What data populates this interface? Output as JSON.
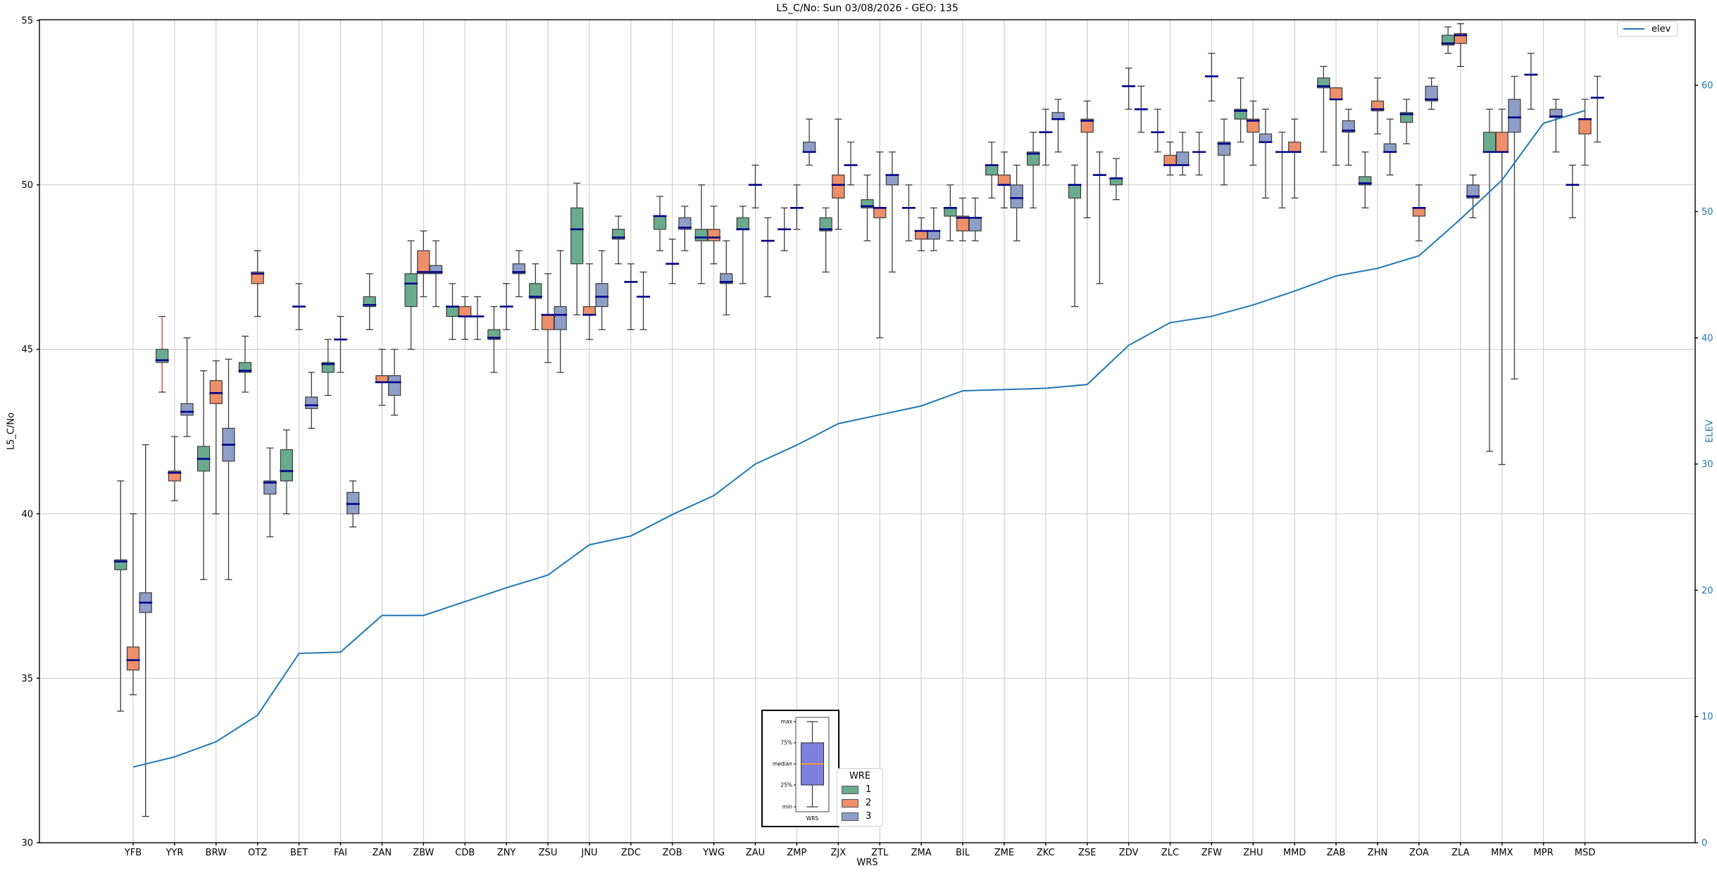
{
  "title": "L5_C/No: Sun 03/08/2026 - GEO: 135",
  "axes": {
    "x_label": "WRS",
    "y_left_label": "L5_C/No",
    "y_right_label": "ELEV",
    "y_left_ticks": [
      30,
      35,
      40,
      45,
      50,
      55
    ],
    "y_right_ticks": [
      0,
      10,
      20,
      30,
      40,
      50,
      60
    ],
    "y_left_range": [
      30,
      55
    ],
    "y_right_range": [
      0,
      65.2
    ],
    "grid": true
  },
  "legend_elev": {
    "label": "elev"
  },
  "legend_wre": {
    "title": "WRE",
    "entries": [
      {
        "label": "1",
        "color": "#6aab8e"
      },
      {
        "label": "2",
        "color": "#ec8f6a"
      },
      {
        "label": "3",
        "color": "#8e9ec6"
      }
    ]
  },
  "inset": {
    "labels": [
      "max",
      "75%",
      "median",
      "25%",
      "min"
    ],
    "x_label": "WRS",
    "box_color": "#7c7fdb",
    "median_color": "#ff9a2a"
  },
  "colors": {
    "wre1": "#6aab8e",
    "wre2": "#ec8f6a",
    "wre3": "#8e9ec6",
    "median": "#00008b",
    "box_edge": "#3c3c3c",
    "whisker": "#3c3c3c",
    "whisker_flagged": "#e03131",
    "elev_line": "#1f77b4",
    "grid": "#c8c8c8",
    "spine": "#000000",
    "right_axis_text": "#1f77b4"
  },
  "chart_data": {
    "type": "boxplot+line",
    "title": "L5_C/No: Sun 03/08/2026 - GEO: 135",
    "xlabel": "WRS",
    "ylabel_left": "L5_C/No",
    "ylabel_right": "ELEV",
    "ylim_left": [
      30,
      55
    ],
    "ylim_right": [
      0,
      65.2
    ],
    "legend_position": "lower-center and upper-right",
    "categories": [
      "YFB",
      "YYR",
      "BRW",
      "OTZ",
      "BET",
      "FAI",
      "ZAN",
      "ZBW",
      "CDB",
      "ZNY",
      "ZSU",
      "JNU",
      "ZDC",
      "ZOB",
      "YWG",
      "ZAU",
      "ZMP",
      "ZJX",
      "ZTL",
      "ZMA",
      "BIL",
      "ZME",
      "ZKC",
      "ZSE",
      "ZDV",
      "ZLC",
      "ZFW",
      "ZHU",
      "MMD",
      "ZAB",
      "ZHN",
      "ZOA",
      "ZLA",
      "MMX",
      "MPR",
      "MSD"
    ],
    "series_line": {
      "name": "elev",
      "values": [
        6.0,
        6.8,
        8.0,
        10.1,
        15.0,
        15.1,
        18.0,
        18.0,
        19.1,
        20.2,
        21.2,
        23.6,
        24.3,
        26.0,
        27.5,
        30.0,
        31.5,
        33.2,
        33.9,
        34.6,
        35.8,
        35.9,
        36.0,
        36.3,
        39.4,
        41.2,
        41.7,
        42.6,
        43.7,
        44.9,
        45.5,
        46.5,
        49.4,
        52.5,
        57.0,
        58.0
      ]
    },
    "boxes_format": [
      "wre",
      "whisker_low",
      "q1",
      "median",
      "q3",
      "whisker_high",
      "flag(optional)"
    ],
    "boxes": {
      "YFB": [
        [
          1,
          34.0,
          38.3,
          38.55,
          38.6,
          41.0
        ],
        [
          2,
          34.5,
          35.25,
          35.55,
          35.95,
          40.0
        ],
        [
          3,
          30.8,
          37.0,
          37.3,
          37.6,
          42.1
        ]
      ],
      "YYR": [
        [
          1,
          43.7,
          44.6,
          44.67,
          45.0,
          46.0,
          "red"
        ],
        [
          2,
          40.4,
          41.0,
          41.25,
          41.3,
          42.35
        ],
        [
          3,
          42.35,
          43.0,
          43.1,
          43.35,
          45.35
        ]
      ],
      "BRW": [
        [
          1,
          38.0,
          41.3,
          41.67,
          42.05,
          44.35
        ],
        [
          2,
          40.0,
          43.35,
          43.67,
          44.05,
          44.65
        ],
        [
          3,
          38.0,
          41.6,
          42.1,
          42.6,
          44.7
        ]
      ],
      "OTZ": [
        [
          1,
          43.7,
          44.3,
          44.35,
          44.6,
          45.4
        ],
        [
          2,
          46.0,
          47.0,
          47.3,
          47.35,
          48.0
        ],
        [
          3,
          39.3,
          40.6,
          40.95,
          41.0,
          42.0
        ]
      ],
      "BET": [
        [
          1,
          40.0,
          41.0,
          41.3,
          41.95,
          42.55
        ],
        [
          2,
          45.6,
          46.3,
          46.3,
          46.3,
          47.0
        ],
        [
          3,
          42.6,
          43.2,
          43.3,
          43.55,
          44.3
        ]
      ],
      "FAI": [
        [
          1,
          43.6,
          44.3,
          44.55,
          44.6,
          45.3
        ],
        [
          2,
          44.3,
          45.3,
          45.3,
          45.3,
          46.0
        ],
        [
          3,
          39.6,
          40.0,
          40.3,
          40.65,
          41.0
        ]
      ],
      "ZAN": [
        [
          1,
          45.6,
          46.3,
          46.35,
          46.6,
          47.3
        ],
        [
          2,
          43.3,
          44.0,
          44.0,
          44.2,
          45.0
        ],
        [
          3,
          43.0,
          43.6,
          44.0,
          44.2,
          45.0
        ]
      ],
      "ZBW": [
        [
          1,
          45.0,
          46.3,
          47.0,
          47.3,
          48.3
        ],
        [
          2,
          46.6,
          47.3,
          47.35,
          48.0,
          48.6
        ],
        [
          3,
          46.3,
          47.3,
          47.35,
          47.55,
          48.3
        ]
      ],
      "CDB": [
        [
          1,
          45.3,
          46.0,
          46.3,
          46.3,
          47.0
        ],
        [
          2,
          45.3,
          46.0,
          46.0,
          46.3,
          46.6
        ],
        [
          3,
          45.3,
          46.0,
          46.0,
          46.0,
          46.6
        ]
      ],
      "ZNY": [
        [
          1,
          44.3,
          45.3,
          45.35,
          45.6,
          46.3
        ],
        [
          2,
          45.6,
          46.3,
          46.3,
          46.3,
          47.0
        ],
        [
          3,
          46.6,
          47.3,
          47.35,
          47.6,
          48.0
        ]
      ],
      "ZSU": [
        [
          1,
          45.6,
          46.55,
          46.6,
          47.0,
          47.6
        ],
        [
          2,
          44.6,
          45.6,
          46.05,
          46.05,
          47.3
        ],
        [
          3,
          44.3,
          45.6,
          46.05,
          46.3,
          48.0
        ]
      ],
      "JNU": [
        [
          1,
          46.05,
          47.6,
          48.65,
          49.3,
          50.05
        ],
        [
          2,
          45.3,
          46.05,
          46.05,
          46.3,
          47.6
        ],
        [
          3,
          45.6,
          46.3,
          46.6,
          47.0,
          48.0
        ]
      ],
      "ZDC": [
        [
          1,
          47.6,
          48.35,
          48.4,
          48.65,
          49.05
        ],
        [
          2,
          45.6,
          47.05,
          47.05,
          47.05,
          47.6
        ],
        [
          3,
          45.6,
          46.6,
          46.6,
          46.6,
          47.35
        ]
      ],
      "ZOB": [
        [
          1,
          48.0,
          48.65,
          49.05,
          49.05,
          49.65
        ],
        [
          2,
          47.0,
          47.6,
          47.6,
          47.6,
          48.35
        ],
        [
          3,
          48.0,
          48.65,
          48.7,
          49.0,
          49.35
        ]
      ],
      "YWG": [
        [
          1,
          47.0,
          48.3,
          48.4,
          48.65,
          50.0
        ],
        [
          2,
          47.6,
          48.3,
          48.4,
          48.65,
          49.35
        ],
        [
          3,
          46.05,
          47.0,
          47.05,
          47.3,
          48.3
        ]
      ],
      "ZAU": [
        [
          1,
          47.0,
          48.65,
          48.65,
          49.0,
          49.35
        ],
        [
          2,
          49.3,
          50.0,
          50.0,
          50.0,
          50.6
        ],
        [
          3,
          46.6,
          48.3,
          48.3,
          48.3,
          49.0
        ]
      ],
      "ZMP": [
        [
          1,
          48.0,
          48.65,
          48.65,
          48.65,
          49.3
        ],
        [
          2,
          48.65,
          49.3,
          49.3,
          49.3,
          50.0
        ],
        [
          3,
          50.6,
          51.0,
          51.0,
          51.3,
          52.0
        ]
      ],
      "ZJX": [
        [
          1,
          47.35,
          48.6,
          48.65,
          49.0,
          49.3
        ],
        [
          2,
          48.65,
          49.6,
          50.0,
          50.3,
          52.0
        ],
        [
          3,
          50.0,
          50.6,
          50.6,
          50.6,
          51.3
        ]
      ],
      "ZTL": [
        [
          1,
          48.3,
          49.3,
          49.35,
          49.55,
          50.3
        ],
        [
          2,
          45.35,
          49.0,
          49.3,
          49.3,
          51.0
        ],
        [
          3,
          47.35,
          50.0,
          50.3,
          50.3,
          51.0
        ]
      ],
      "ZMA": [
        [
          1,
          48.3,
          49.3,
          49.3,
          49.3,
          50.0
        ],
        [
          2,
          48.0,
          48.35,
          48.6,
          48.6,
          49.0
        ],
        [
          3,
          48.0,
          48.35,
          48.6,
          48.6,
          49.3
        ]
      ],
      "BIL": [
        [
          1,
          48.3,
          49.05,
          49.3,
          49.3,
          50.0
        ],
        [
          2,
          48.3,
          48.6,
          49.0,
          49.05,
          49.6
        ],
        [
          3,
          48.3,
          48.6,
          49.0,
          49.0,
          49.6
        ]
      ],
      "ZME": [
        [
          1,
          49.6,
          50.3,
          50.6,
          50.6,
          51.3
        ],
        [
          2,
          49.3,
          50.0,
          50.0,
          50.3,
          51.0
        ],
        [
          3,
          48.3,
          49.3,
          49.6,
          50.0,
          50.6
        ]
      ],
      "ZKC": [
        [
          1,
          49.3,
          50.6,
          50.95,
          51.0,
          51.6
        ],
        [
          2,
          50.6,
          51.6,
          51.6,
          51.6,
          52.3
        ],
        [
          3,
          51.0,
          52.0,
          52.0,
          52.2,
          52.6
        ]
      ],
      "ZSE": [
        [
          1,
          46.3,
          49.6,
          50.0,
          50.0,
          50.6
        ],
        [
          2,
          49.0,
          51.6,
          51.95,
          52.0,
          52.55
        ],
        [
          3,
          47.0,
          50.3,
          50.3,
          50.3,
          51.0
        ]
      ],
      "ZDV": [
        [
          1,
          49.55,
          50.0,
          50.2,
          50.2,
          50.8
        ],
        [
          2,
          52.3,
          53.0,
          53.0,
          53.0,
          53.55
        ],
        [
          3,
          51.6,
          52.3,
          52.3,
          52.3,
          53.0
        ]
      ],
      "ZLC": [
        [
          1,
          51.0,
          51.6,
          51.6,
          51.6,
          52.3
        ],
        [
          2,
          50.3,
          50.6,
          50.6,
          50.9,
          51.3
        ],
        [
          3,
          50.3,
          50.6,
          50.6,
          51.0,
          51.6
        ]
      ],
      "ZFW": [
        [
          1,
          50.3,
          51.0,
          51.0,
          51.0,
          51.6
        ],
        [
          2,
          52.55,
          53.3,
          53.3,
          53.3,
          54.0
        ],
        [
          3,
          50.0,
          50.9,
          51.25,
          51.3,
          52.0
        ]
      ],
      "ZHU": [
        [
          1,
          51.3,
          52.0,
          52.25,
          52.3,
          53.25
        ],
        [
          2,
          50.6,
          51.6,
          51.95,
          52.0,
          52.55
        ],
        [
          3,
          49.6,
          51.3,
          51.3,
          51.55,
          52.3
        ]
      ],
      "MMD": [
        [
          1,
          49.3,
          51.0,
          51.0,
          51.0,
          51.6
        ],
        [
          2,
          49.6,
          51.0,
          51.0,
          51.3,
          52.0
        ]
      ],
      "ZAB": [
        [
          1,
          51.0,
          52.95,
          53.0,
          53.25,
          53.6
        ],
        [
          2,
          50.6,
          52.6,
          52.6,
          52.95,
          52.95
        ],
        [
          3,
          50.6,
          51.6,
          51.65,
          51.95,
          52.3
        ]
      ],
      "ZHN": [
        [
          1,
          49.3,
          50.0,
          50.05,
          50.25,
          51.0
        ],
        [
          2,
          51.55,
          52.25,
          52.3,
          52.55,
          53.25
        ],
        [
          3,
          50.3,
          51.0,
          51.0,
          51.25,
          52.0
        ]
      ],
      "ZOA": [
        [
          1,
          51.25,
          51.9,
          52.15,
          52.2,
          52.6
        ],
        [
          2,
          48.3,
          49.05,
          49.3,
          49.3,
          50.0
        ],
        [
          3,
          52.3,
          52.55,
          52.6,
          53.0,
          53.25
        ]
      ],
      "ZLA": [
        [
          1,
          54.0,
          54.25,
          54.3,
          54.55,
          54.8
        ],
        [
          2,
          53.6,
          54.3,
          54.55,
          54.6,
          54.9
        ],
        [
          3,
          49.0,
          49.6,
          49.65,
          50.0,
          50.3
        ]
      ],
      "MMX": [
        [
          1,
          41.9,
          51.0,
          51.0,
          51.6,
          52.3
        ],
        [
          2,
          41.5,
          51.0,
          51.0,
          51.6,
          52.3
        ],
        [
          3,
          44.1,
          51.6,
          52.05,
          52.6,
          53.3
        ]
      ],
      "MPR": [
        [
          1,
          52.3,
          53.35,
          53.35,
          53.35,
          54.0
        ],
        [
          3,
          51.0,
          52.05,
          52.08,
          52.3,
          52.6
        ]
      ],
      "MSD": [
        [
          1,
          49.0,
          50.0,
          50.0,
          50.0,
          50.6
        ],
        [
          2,
          50.6,
          51.55,
          52.0,
          52.0,
          52.6
        ],
        [
          3,
          51.3,
          52.65,
          52.65,
          52.65,
          53.3
        ]
      ]
    }
  }
}
